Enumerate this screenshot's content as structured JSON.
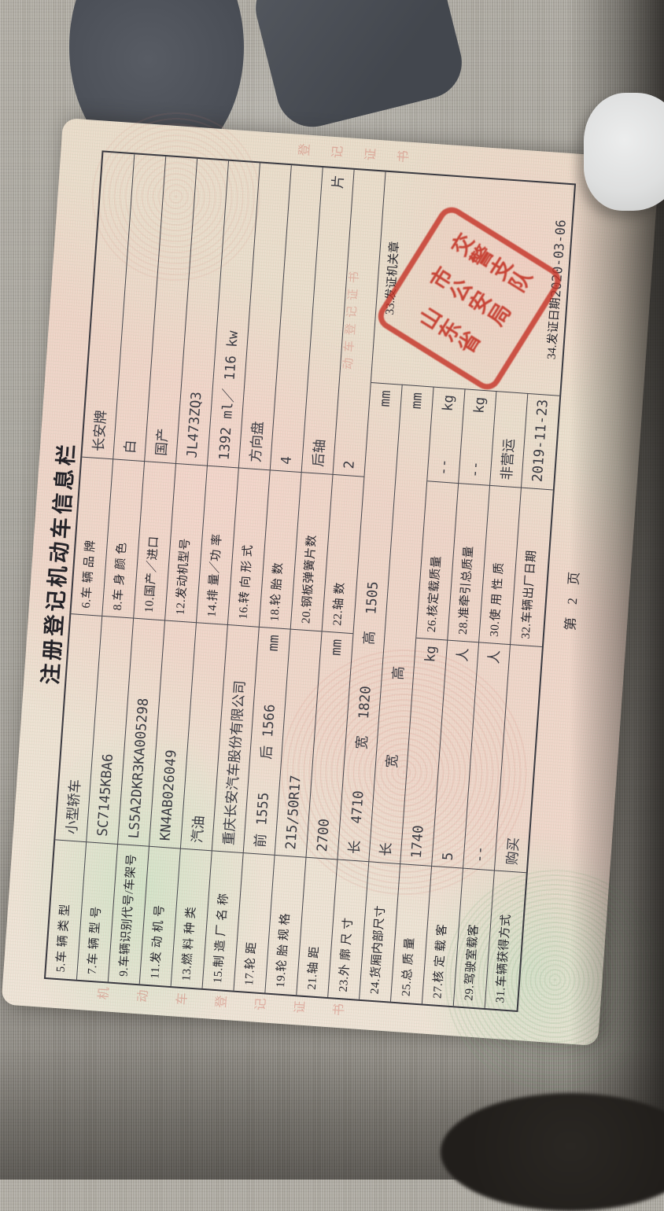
{
  "document": {
    "title": "注册登记机动车信息栏",
    "footer": "第 2 页",
    "table": {
      "rows": [
        {
          "type": "wide",
          "l1": "5.车 辆 类 型",
          "v1": "小型轿车",
          "u1": "",
          "l2": "6.车 辆 品 牌",
          "v2": "长安牌",
          "u2": ""
        },
        {
          "type": "wide",
          "l1": "7.车 辆 型 号",
          "v1": "SC7145KBA6",
          "u1": "",
          "l2": "8.车 身 颜 色",
          "v2": "白",
          "u2": ""
        },
        {
          "type": "wide",
          "l1": "9.车辆识别代号/车架号",
          "v1": "LS5A2DKR3KA005298",
          "u1": "",
          "l2": "10.国产／进口",
          "v2": "国产",
          "u2": ""
        },
        {
          "type": "wide",
          "l1": "11.发 动 机 号",
          "v1": "KN4AB026049",
          "u1": "",
          "l2": "12.发动机型号",
          "v2": "JL473ZQ3",
          "u2": ""
        },
        {
          "type": "wide",
          "l1": "13.燃 料 种 类",
          "v1": "汽油",
          "u1": "",
          "l2": "14.排 量／功 率",
          "v2": "1392 ml／ 116 kw",
          "u2": ""
        },
        {
          "type": "wide",
          "l1": "15.制 造 厂 名 称",
          "v1": "重庆长安汽车股份有限公司",
          "u1": "",
          "l2": "16.转 向 形 式",
          "v2": "方向盘",
          "u2": ""
        },
        {
          "type": "wide",
          "l1": "17.轮      距",
          "v1": "前 1555    后 1566",
          "u1": "mm",
          "l2": "18.轮  胎  数",
          "v2": "4",
          "u2": ""
        },
        {
          "type": "wide",
          "l1": "19.轮 胎 规 格",
          "v1": "215/50R17",
          "u1": "",
          "l2": "20.钢板弹簧片数",
          "v2": "后轴",
          "u2": "片"
        },
        {
          "type": "wide",
          "l1": "21.轴      距",
          "v1": "2700",
          "u1": "mm",
          "l2": "22.轴      数",
          "v2": "2",
          "u2": ""
        },
        {
          "type": "span",
          "l1": "23.外 廓 尺 寸",
          "v1": "长  4710     宽  1820     高  1505",
          "u1": "mm"
        },
        {
          "type": "span",
          "l1": "24.货厢内部尺寸",
          "v1": "长         宽         高",
          "u1": "mm"
        },
        {
          "type": "narrow",
          "l1": "25.总  质  量",
          "v1": "1740",
          "u1": "kg",
          "l2": "26.核定载质量",
          "v2": "--",
          "u2": "kg"
        },
        {
          "type": "narrow",
          "l1": "27.核 定 载 客",
          "v1": "5",
          "u1": "人",
          "l2": "28.准牵引总质量",
          "v2": "--",
          "u2": "kg"
        },
        {
          "type": "narrow",
          "l1": "29.驾驶室载客",
          "v1": "--",
          "u1": "人",
          "l2": "30.使 用 性 质",
          "v2": "非营运",
          "u2": ""
        },
        {
          "type": "narrow",
          "l1": "31.车辆获得方式",
          "v1": "购买",
          "u1": "",
          "l2": "32.车辆出厂日期",
          "v2": "2019-11-23",
          "u2": ""
        }
      ]
    },
    "issuing": {
      "label33": "33.发证机关章",
      "label34": "34.发证日期",
      "issue_date": "2020-03-06",
      "seal": {
        "text_partial": "山东××市公安局交警支队",
        "columns": [
          "山东省",
          "市公安局",
          "交警支队"
        ],
        "color": "#c0392b"
      }
    },
    "watermark": {
      "left_margin": "机动车登记证书",
      "right_margin": "登记证书",
      "inline": "动车登记证书"
    },
    "colors": {
      "paper": "#ece3d4",
      "table_line": "#46464d",
      "seal_red": "#c53528",
      "watermark_red": "#cd6e64",
      "tablecloth": "#a3a098"
    }
  }
}
